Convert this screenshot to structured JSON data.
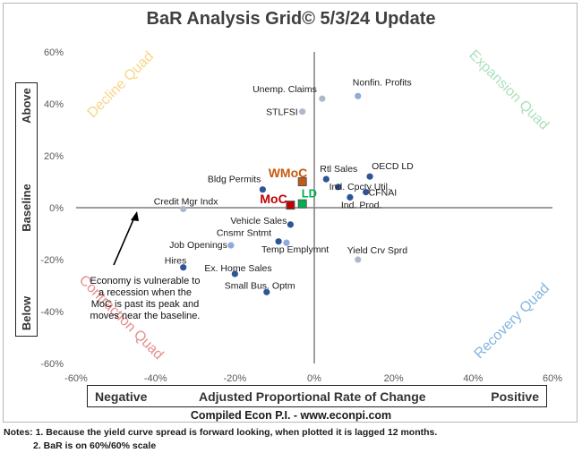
{
  "chart_data": {
    "type": "scatter",
    "title": "BaR Analysis Grid© 5/3/24 Update",
    "xlim": [
      -60,
      60
    ],
    "ylim": [
      -60,
      60
    ],
    "x_ticks": [
      "-60%",
      "-40%",
      "-20%",
      "0%",
      "20%",
      "40%",
      "60%"
    ],
    "y_ticks": [
      "60%",
      "40%",
      "20%",
      "0%",
      "-20%",
      "-40%",
      "-60%"
    ],
    "x_tick_values": [
      -60,
      -40,
      -20,
      0,
      20,
      40,
      60
    ],
    "y_tick_values": [
      60,
      40,
      20,
      0,
      -20,
      -40,
      -60
    ],
    "xlabel": {
      "left": "Negative",
      "center": "Adjusted Proportional Rate of Change",
      "right": "Positive"
    },
    "ylabel": {
      "top": "Above",
      "middle": "Baseline",
      "bottom": "Below"
    },
    "quadrants": [
      {
        "label": "Decline Quad",
        "color": "#f7c760"
      },
      {
        "label": "Expansion Quad",
        "color": "#8fd6a4"
      },
      {
        "label": "Contraction Quad",
        "color": "#e06666"
      },
      {
        "label": "Recovery Quad",
        "color": "#5b9bd5"
      }
    ],
    "points": [
      {
        "label": "Nonfin. Profits",
        "x": 11,
        "y": 43,
        "color": "#8faadc"
      },
      {
        "label": "Unemp. Claims",
        "x": 2,
        "y": 42,
        "color": "#adb9ca"
      },
      {
        "label": "STLFSI",
        "x": -3,
        "y": 37,
        "color": "#adb9ca"
      },
      {
        "label": "OECD LD",
        "x": 14,
        "y": 12,
        "color": "#2f5597"
      },
      {
        "label": "Rtl Sales",
        "x": 3,
        "y": 11,
        "color": "#2f5597"
      },
      {
        "label": "Ind. Cpcty Util.",
        "x": 6,
        "y": 8,
        "color": "#2f5597"
      },
      {
        "label": "CFNAI",
        "x": 13,
        "y": 6,
        "color": "#2f5597"
      },
      {
        "label": "Ind. Prod.",
        "x": 9,
        "y": 4,
        "color": "#2f5597"
      },
      {
        "label": "Bldg Permits",
        "x": -13,
        "y": 7,
        "color": "#2f5597"
      },
      {
        "label": "Credit Mgr Indx",
        "x": -33,
        "y": -0.5,
        "color": "#adb9ca"
      },
      {
        "label": "Vehicle Sales",
        "x": -6,
        "y": -6.5,
        "color": "#2f5597"
      },
      {
        "label": "Job Openings",
        "x": -21,
        "y": -14.5,
        "color": "#8faadc"
      },
      {
        "label": "Cnsmr Sntmt",
        "x": -9,
        "y": -13,
        "color": "#2f5597"
      },
      {
        "label": "Temp Emplymnt",
        "x": -7,
        "y": -13.5,
        "color": "#8faadc"
      },
      {
        "label": "Hires",
        "x": -33,
        "y": -23,
        "color": "#2f5597"
      },
      {
        "label": "Ex. Home Sales",
        "x": -20,
        "y": -25.5,
        "color": "#2f5597"
      },
      {
        "label": "Yield Crv Sprd",
        "x": 11,
        "y": -20,
        "color": "#adb9ca"
      },
      {
        "label": "Small Bus. Optm",
        "x": -12,
        "y": -32.5,
        "color": "#2f5597"
      }
    ],
    "composites": [
      {
        "label": "WMoC",
        "x": -3,
        "y": 10,
        "color": "#c55a11"
      },
      {
        "label": "MoC",
        "x": -6,
        "y": 1,
        "color": "#c00000"
      },
      {
        "label": "LD",
        "x": -3,
        "y": 1.5,
        "color": "#00b050"
      }
    ],
    "annotation": "Economy is vulnerable to a recession when the MoC is past its peak and moves near the baseline.",
    "subtitle": "Compiled Econ P.I. - www.econpi.com",
    "notes": [
      "Notes: 1. Because the yield curve spread is forward looking, when plotted it is lagged 12 months.",
      "2. BaR is on 60%/60% scale"
    ]
  }
}
